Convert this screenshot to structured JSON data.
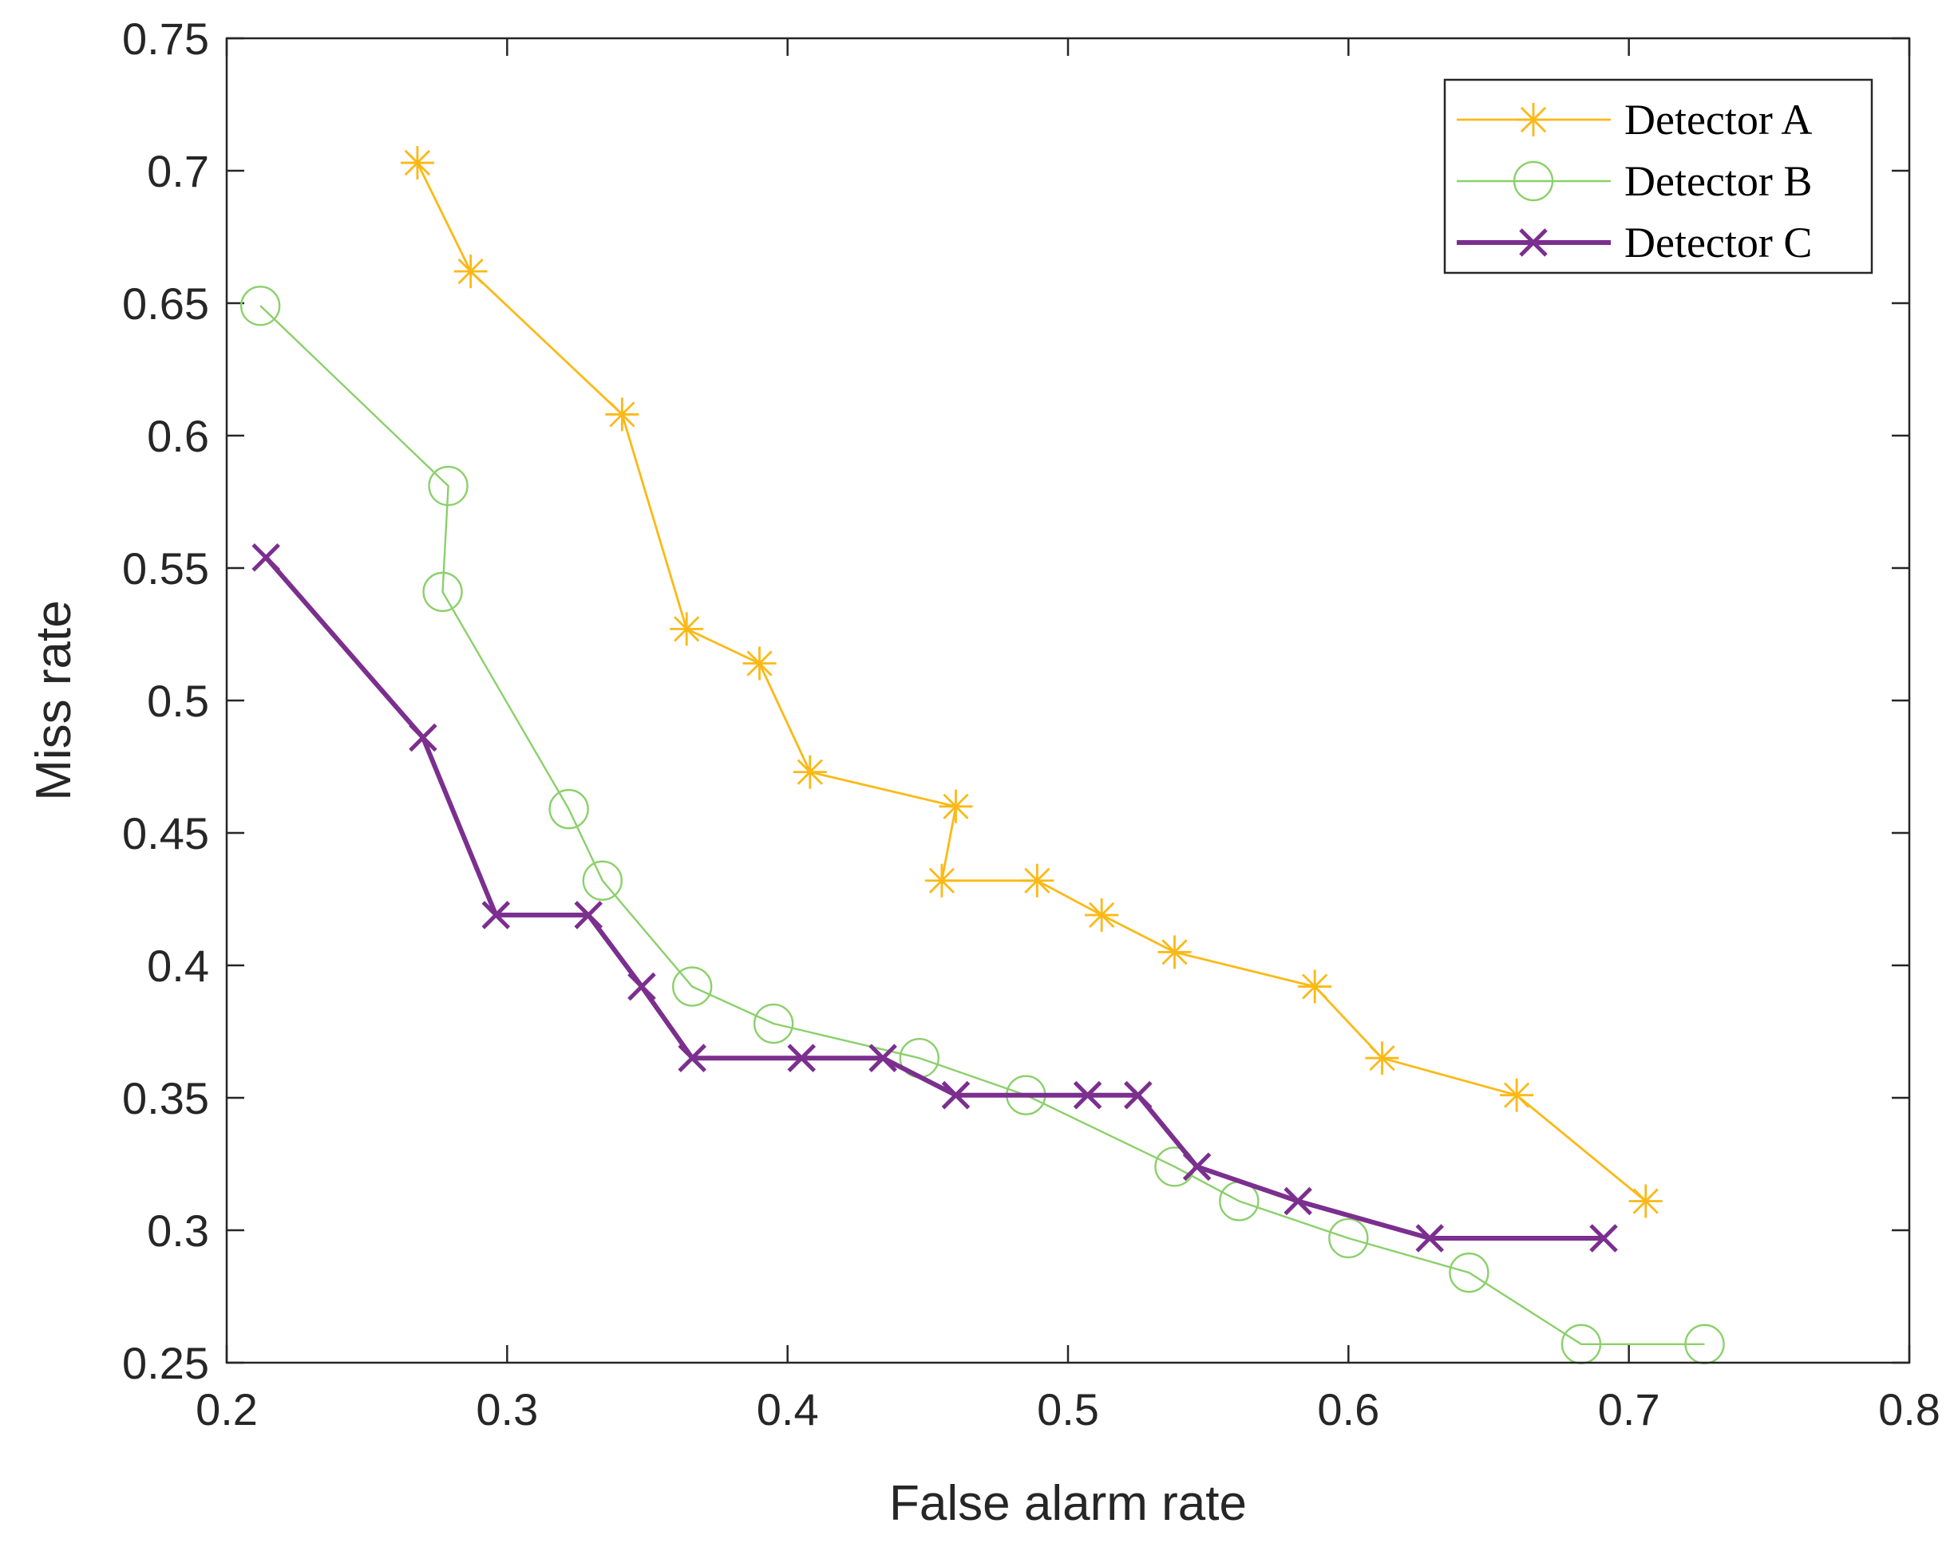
{
  "chart_data": {
    "type": "line",
    "title": "",
    "xlabel": "False alarm rate",
    "ylabel": "Miss rate",
    "xlim": [
      0.2,
      0.8
    ],
    "ylim": [
      0.25,
      0.75
    ],
    "xticks": [
      "0.2",
      "0.3",
      "0.4",
      "0.5",
      "0.6",
      "0.7",
      "0.8"
    ],
    "yticks": [
      "0.25",
      "0.3",
      "0.35",
      "0.4",
      "0.45",
      "0.5",
      "0.55",
      "0.6",
      "0.65",
      "0.7",
      "0.75"
    ],
    "grid": false,
    "legend_position": "top-right",
    "series": [
      {
        "name": "Detector A",
        "color": "#FBB917",
        "marker": "asterisk",
        "x": [
          0.268,
          0.287,
          0.341,
          0.364,
          0.39,
          0.408,
          0.46,
          0.455,
          0.489,
          0.512,
          0.538,
          0.588,
          0.612,
          0.66,
          0.706
        ],
        "y": [
          0.703,
          0.662,
          0.608,
          0.527,
          0.514,
          0.473,
          0.46,
          0.432,
          0.432,
          0.419,
          0.405,
          0.392,
          0.365,
          0.351,
          0.311
        ]
      },
      {
        "name": "Detector B",
        "color": "#8BD06A",
        "marker": "circle",
        "x": [
          0.212,
          0.279,
          0.277,
          0.322,
          0.334,
          0.366,
          0.395,
          0.447,
          0.485,
          0.538,
          0.561,
          0.6,
          0.643,
          0.683,
          0.727
        ],
        "y": [
          0.649,
          0.581,
          0.541,
          0.459,
          0.432,
          0.392,
          0.378,
          0.365,
          0.351,
          0.324,
          0.311,
          0.297,
          0.284,
          0.257,
          0.257
        ]
      },
      {
        "name": "Detector C",
        "color": "#7B2F8E",
        "marker": "x",
        "x": [
          0.214,
          0.27,
          0.296,
          0.329,
          0.348,
          0.366,
          0.405,
          0.434,
          0.46,
          0.507,
          0.525,
          0.546,
          0.582,
          0.629,
          0.691
        ],
        "y": [
          0.554,
          0.486,
          0.419,
          0.419,
          0.392,
          0.365,
          0.365,
          0.365,
          0.351,
          0.351,
          0.351,
          0.324,
          0.311,
          0.297,
          0.297
        ]
      }
    ]
  }
}
